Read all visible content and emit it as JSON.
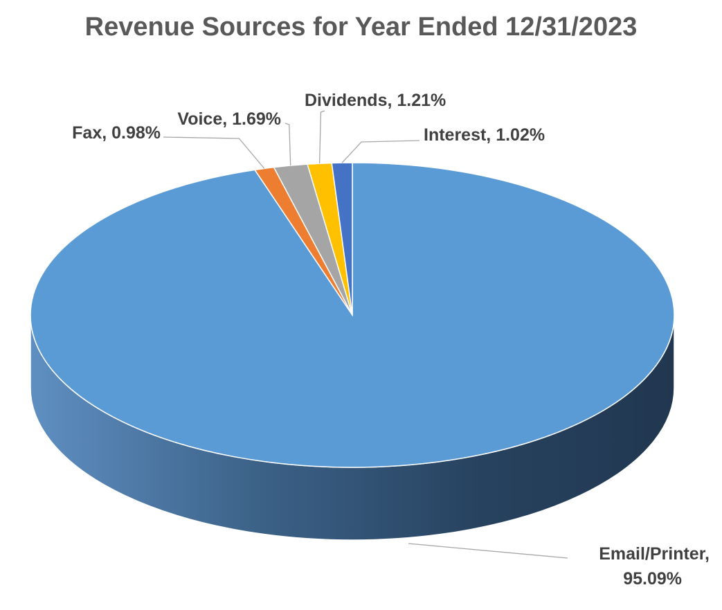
{
  "chart_data": {
    "type": "pie",
    "title": "Revenue Sources for Year Ended 12/31/2023",
    "slices": [
      {
        "label": "Email/Printer, 95.09%",
        "lines": [
          "Email/Printer,",
          "95.09%"
        ],
        "value": 95.09,
        "color": "#5b9bd5"
      },
      {
        "label": "Fax, 0.98%",
        "lines": [
          "Fax, 0.98%"
        ],
        "value": 0.98,
        "color": "#ed7d31"
      },
      {
        "label": "Voice, 1.69%",
        "lines": [
          "Voice, 1.69%"
        ],
        "value": 1.69,
        "color": "#a5a5a5"
      },
      {
        "label": "Dividends, 1.21%",
        "lines": [
          "Dividends, 1.21%"
        ],
        "value": 1.21,
        "color": "#ffc000"
      },
      {
        "label": "Interest, 1.02%",
        "lines": [
          "Interest, 1.02%"
        ],
        "value": 1.02,
        "color": "#4472c4"
      }
    ]
  }
}
